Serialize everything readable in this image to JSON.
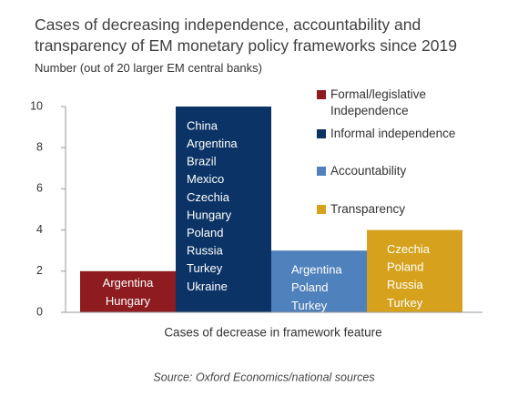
{
  "chart_data": {
    "type": "bar",
    "title": "Cases of decreasing independence, accountability and transparency of EM monetary policy frameworks since 2019",
    "subtitle": "Number (out of 20 larger EM central banks)",
    "x_label": "Cases of decrease in framework feature",
    "source": "Source: Oxford Economics/national sources",
    "categories": [
      null
    ],
    "series": [
      {
        "name": "Formal/legislative Independence",
        "color": "#8e1b1f",
        "values": [
          2
        ],
        "labels": [
          "Argentina",
          "Hungary"
        ]
      },
      {
        "name": "Informal independence",
        "color": "#0b3366",
        "values": [
          10
        ],
        "labels": [
          "China",
          "Argentina",
          "Brazil",
          "Mexico",
          "Czechia",
          "Hungary",
          "Poland",
          "Russia",
          "Turkey",
          "Ukraine"
        ]
      },
      {
        "name": "Accountability",
        "color": "#4f81bd",
        "values": [
          3
        ],
        "labels": [
          "Argentina",
          "Poland",
          "Turkey"
        ]
      },
      {
        "name": "Transparency",
        "color": "#d6a21e",
        "values": [
          4
        ],
        "labels": [
          "Czechia",
          "Poland",
          "Russia",
          "Turkey"
        ]
      }
    ],
    "ylim": [
      0,
      10
    ],
    "yticks": [
      0,
      2,
      4,
      6,
      8,
      10
    ]
  }
}
